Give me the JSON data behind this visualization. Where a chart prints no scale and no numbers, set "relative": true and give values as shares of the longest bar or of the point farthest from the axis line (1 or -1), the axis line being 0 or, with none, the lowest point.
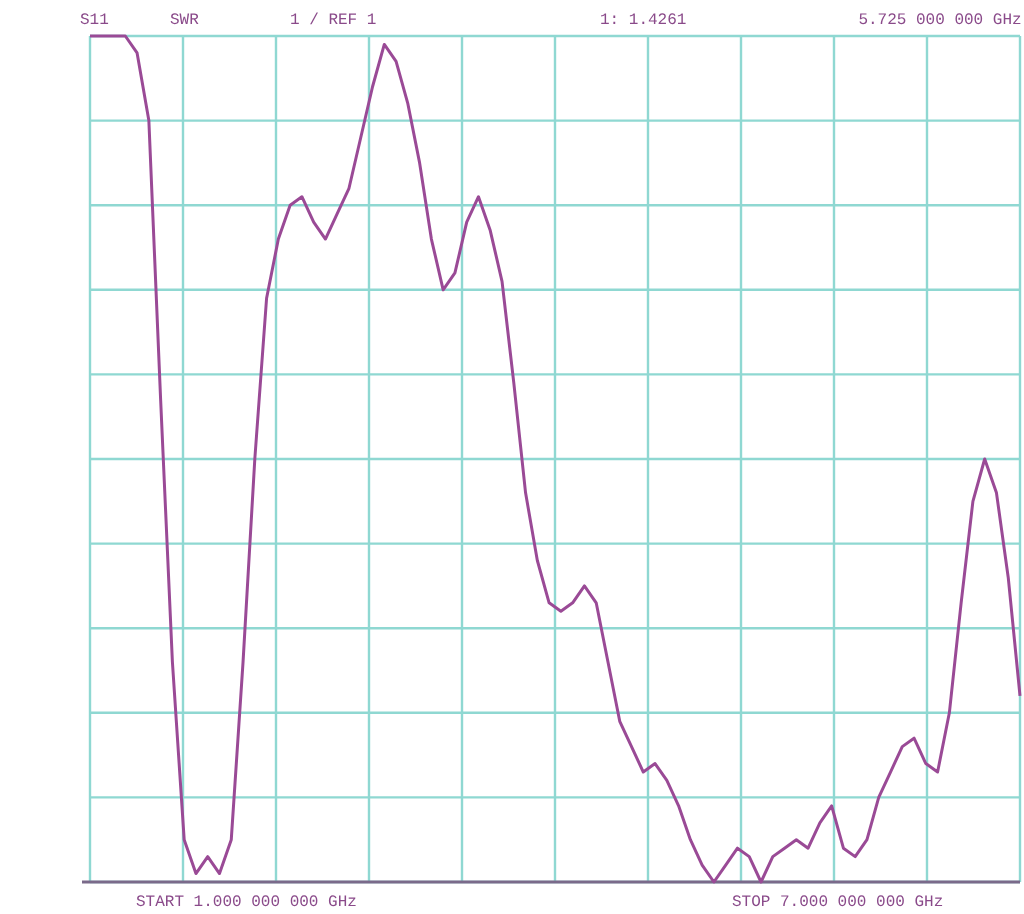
{
  "chart_data": {
    "type": "line",
    "relative": true,
    "grid": true,
    "line_style": "solid",
    "annotations": [
      "S11",
      "SWR",
      "1 / REF 1",
      "1: 1.4261",
      "5.725 000 000 GHz",
      "START 1.000 000 000 GHz",
      "STOP 7.000 000 000 GHz"
    ],
    "categories": [
      null,
      null,
      null,
      null,
      null,
      null,
      null,
      null,
      null,
      null,
      null,
      null,
      null,
      null,
      null,
      null,
      null,
      null,
      null,
      null,
      null,
      null,
      null,
      null,
      null,
      null,
      null,
      null,
      null,
      null,
      null,
      null,
      null,
      null,
      null,
      null,
      null,
      null,
      null,
      null,
      null,
      null,
      null,
      null,
      null,
      null,
      null,
      null,
      null,
      null,
      null,
      null,
      null,
      null,
      null,
      null,
      null,
      null,
      null,
      null,
      null,
      null,
      null,
      null,
      null,
      null,
      null,
      null,
      null,
      null,
      null,
      null,
      null,
      null,
      null,
      null,
      null,
      null,
      null,
      null
    ],
    "series": [
      {
        "color": "#9a4a96",
        "values": [
          1,
          1,
          1,
          1,
          0.98,
          0.9,
          0.57,
          0.26,
          0.05,
          0.01,
          0.03,
          0.01,
          0.05,
          0.26,
          0.5,
          0.69,
          0.76,
          0.8,
          0.81,
          0.78,
          0.76,
          0.79,
          0.82,
          0.88,
          0.94,
          0.99,
          0.97,
          0.92,
          0.85,
          0.76,
          0.7,
          0.72,
          0.78,
          0.81,
          0.77,
          0.71,
          0.59,
          0.46,
          0.38,
          0.33,
          0.32,
          0.33,
          0.35,
          0.33,
          0.26,
          0.19,
          0.16,
          0.13,
          0.14,
          0.12,
          0.09,
          0.05,
          0.02,
          0,
          0.02,
          0.04,
          0.03,
          0,
          0.03,
          0.04,
          0.05,
          0.04,
          0.07,
          0.09,
          0.04,
          0.03,
          0.05,
          0.1,
          0.13,
          0.16,
          0.17,
          0.14,
          0.13,
          0.2,
          0.33,
          0.45,
          0.5,
          0.46,
          0.36,
          0.22
        ]
      }
    ]
  }
}
